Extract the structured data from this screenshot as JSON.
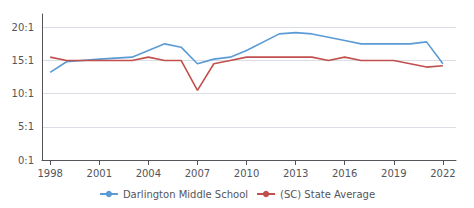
{
  "chart_data": {
    "type": "line",
    "x": [
      1998,
      1999,
      2001,
      2003,
      2004,
      2005,
      2006,
      2007,
      2008,
      2009,
      2010,
      2012,
      2013,
      2014,
      2015,
      2016,
      2017,
      2019,
      2020,
      2021,
      2022
    ],
    "series": [
      {
        "name": "Darlington Middle School",
        "color": "#5b9bd5",
        "values": [
          13.2,
          14.8,
          15.2,
          15.5,
          16.5,
          17.5,
          17.0,
          14.5,
          15.2,
          15.5,
          16.5,
          19.0,
          19.2,
          19.0,
          18.5,
          18.0,
          17.5,
          17.5,
          17.5,
          17.8,
          14.5
        ]
      },
      {
        "name": "(SC) State Average",
        "color": "#c0504d",
        "values": [
          15.5,
          15.0,
          15.0,
          15.0,
          15.5,
          15.0,
          15.0,
          10.5,
          14.5,
          15.0,
          15.5,
          15.5,
          15.5,
          15.5,
          15.0,
          15.5,
          15.0,
          15.0,
          14.5,
          14.0,
          14.2
        ]
      }
    ],
    "xlim": [
      1997.5,
      2022.8
    ],
    "xticks": [
      1998,
      2001,
      2004,
      2007,
      2010,
      2013,
      2016,
      2019,
      2022
    ],
    "ylim": [
      0,
      22
    ],
    "yticks": [
      {
        "value": 0,
        "label": "0:1"
      },
      {
        "value": 5,
        "label": "5:1"
      },
      {
        "value": 10,
        "label": "10:1"
      },
      {
        "value": 15,
        "label": "15:1"
      },
      {
        "value": 20,
        "label": "20:1"
      }
    ],
    "grid": "y",
    "legend": "bottom"
  }
}
